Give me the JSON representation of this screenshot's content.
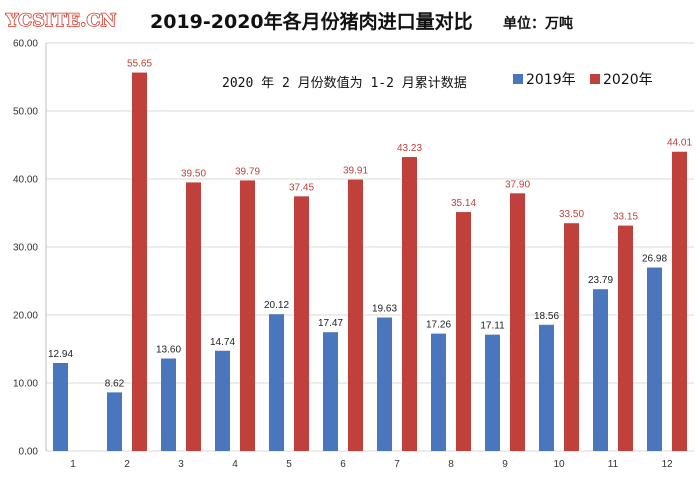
{
  "watermark": "YCSITE.CN",
  "title": "2019-2020年各月份猪肉进口量对比",
  "unit_label": "单位：万吨",
  "note": "2020 年 2 月份数值为 1-2 月累计数据",
  "colors": {
    "series_2019": "#4a76bd",
    "series_2020": "#c0413c",
    "label_2020": "#c0413c",
    "label_2019": "#222222",
    "grid": "#d9d9d9"
  },
  "chart_data": {
    "type": "bar",
    "categories": [
      "1",
      "2",
      "3",
      "4",
      "5",
      "6",
      "7",
      "8",
      "9",
      "10",
      "11",
      "12"
    ],
    "y_ticks": [
      "0.00",
      "10.00",
      "20.00",
      "30.00",
      "40.00",
      "50.00",
      "60.00"
    ],
    "ylim": [
      0,
      60
    ],
    "grid": true,
    "legend_position": "top-right",
    "series": [
      {
        "name": "2019年",
        "values": [
          12.94,
          8.62,
          13.6,
          14.74,
          20.12,
          17.47,
          19.63,
          17.26,
          17.11,
          18.56,
          23.79,
          26.98
        ],
        "labels": [
          "12.94",
          "8.62",
          "13.60",
          "14.74",
          "20.12",
          "17.47",
          "19.63",
          "17.26",
          "17.11",
          "18.56",
          "23.79",
          "26.98"
        ]
      },
      {
        "name": "2020年",
        "values": [
          null,
          55.65,
          39.5,
          39.79,
          37.45,
          39.91,
          43.23,
          35.14,
          37.9,
          33.5,
          33.15,
          44.01
        ],
        "labels": [
          "",
          "55.65",
          "39.50",
          "39.79",
          "37.45",
          "39.91",
          "43.23",
          "35.14",
          "37.90",
          "33.50",
          "33.15",
          "44.01"
        ]
      }
    ]
  }
}
